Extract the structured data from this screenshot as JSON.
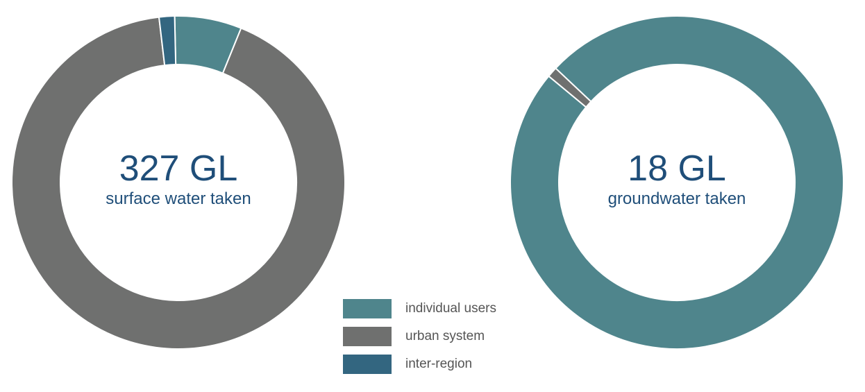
{
  "colors": {
    "individual_users": "#4f858c",
    "urban_system": "#6f706f",
    "inter_region": "#336680",
    "center_text": "#1f4e79"
  },
  "chart_data": [
    {
      "type": "pie",
      "variant": "donut",
      "center_value": "327 GL",
      "center_label": "surface water taken",
      "categories": [
        "individual users",
        "urban system",
        "inter-region"
      ],
      "values": [
        6.5,
        92.0,
        1.5
      ]
    },
    {
      "type": "pie",
      "variant": "donut",
      "center_value": "18 GL",
      "center_label": "groundwater taken",
      "categories": [
        "individual users",
        "urban system",
        "inter-region"
      ],
      "values": [
        99.0,
        1.0,
        0.0
      ]
    }
  ],
  "legend": {
    "placement": "bottom-center",
    "items": [
      {
        "label": "individual users",
        "color_key": "individual_users"
      },
      {
        "label": "urban system",
        "color_key": "urban_system"
      },
      {
        "label": "inter-region",
        "color_key": "inter_region"
      }
    ]
  }
}
